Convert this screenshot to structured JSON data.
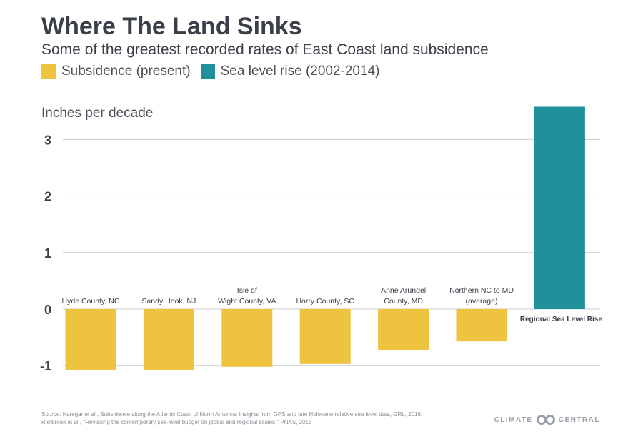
{
  "header": {
    "title": "Where The Land Sinks",
    "subtitle": "Some of the greatest recorded rates of East Coast land subsidence"
  },
  "legend": [
    {
      "label": "Subsidence (present)",
      "color": "#EEC33F"
    },
    {
      "label": "Sea level rise (2002-2014)",
      "color": "#20909A"
    }
  ],
  "footer": {
    "source_line1": "Source: Karegar et al., Subsidence along the Atlantic Coast of North America: Insights from GPS and late Holocene relative sea level data, GRL, 2016.",
    "source_line2": "Rietbroek et al., \"Revisiting the contemporary sea-level budget on global and regional scales,\" PNAS, 2016",
    "brand_left": "CLIMATE",
    "brand_right": "CENTRAL"
  },
  "chart_data": {
    "type": "bar",
    "title": "Where The Land Sinks",
    "subtitle": "Some of the greatest recorded rates of East Coast land subsidence",
    "ylabel": "Inches per decade",
    "ylim": [
      -1.1,
      3.6
    ],
    "yticks": [
      -1,
      0,
      1,
      2,
      3
    ],
    "grid": true,
    "legend_position": "top-left",
    "categories": [
      "Hyde County, NC",
      "Sandy Hook, NJ",
      "Isle of Wight County, VA",
      "Horry County, SC",
      "Anne Arundel County, MD",
      "Northern NC to MD (average)",
      "Regional Sea Level Rise"
    ],
    "category_lines": [
      [
        "Hyde County, NC"
      ],
      [
        "Sandy Hook, NJ"
      ],
      [
        "Isle of",
        "Wight County, VA"
      ],
      [
        "Horry County, SC"
      ],
      [
        "Anne Arundel",
        "County, MD"
      ],
      [
        "Northern NC to MD",
        "(average)"
      ],
      [
        "Regional Sea Level Rise"
      ]
    ],
    "series": [
      {
        "name": "Subsidence (present)",
        "color": "#EEC33F",
        "values": [
          -1.08,
          -1.08,
          -1.02,
          -0.97,
          -0.73,
          -0.57,
          null
        ]
      },
      {
        "name": "Sea level rise (2002-2014)",
        "color": "#20909A",
        "values": [
          null,
          null,
          null,
          null,
          null,
          null,
          3.58
        ]
      }
    ]
  }
}
